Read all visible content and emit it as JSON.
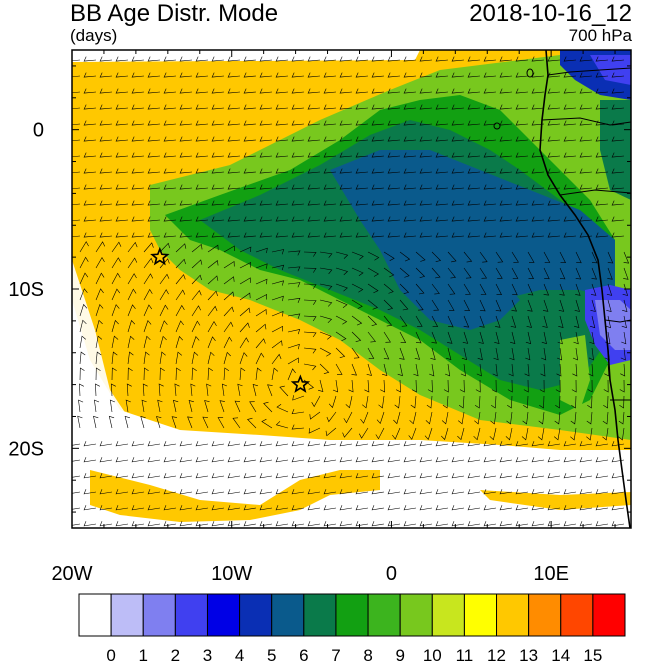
{
  "header": {
    "title": "BB Age Distr. Mode",
    "units": "(days)",
    "datetime": "2018-10-16_12",
    "level": "700 hPa"
  },
  "map": {
    "lon_range": [
      -20,
      15
    ],
    "lat_range": [
      -25,
      5
    ],
    "x_tick_labels": [
      {
        "lon": -20,
        "label": "20W"
      },
      {
        "lon": -10,
        "label": "10W"
      },
      {
        "lon": 0,
        "label": "0"
      },
      {
        "lon": 10,
        "label": "10E"
      }
    ],
    "y_tick_labels": [
      {
        "lat": 0,
        "label": "0"
      },
      {
        "lat": -10,
        "label": "10S"
      },
      {
        "lat": -20,
        "label": "20S"
      }
    ],
    "markers": [
      {
        "name": "star-marker",
        "lon": -14.5,
        "lat": -8
      },
      {
        "name": "star-marker",
        "lon": -5.7,
        "lat": -16
      }
    ]
  },
  "colorbar": {
    "colors": [
      "#ffffff",
      "#bdbdf7",
      "#7f7ff0",
      "#4040f0",
      "#0000e6",
      "#0a2fb4",
      "#0a5a8c",
      "#0a7a4a",
      "#12a012",
      "#3cb41e",
      "#78c81e",
      "#c8e61e",
      "#ffff00",
      "#ffc800",
      "#ff8c00",
      "#ff4600",
      "#ff0000"
    ],
    "labels": [
      "0",
      "1",
      "2",
      "3",
      "4",
      "5",
      "6",
      "7",
      "8",
      "9",
      "10",
      "11",
      "12",
      "13",
      "14",
      "15"
    ]
  }
}
